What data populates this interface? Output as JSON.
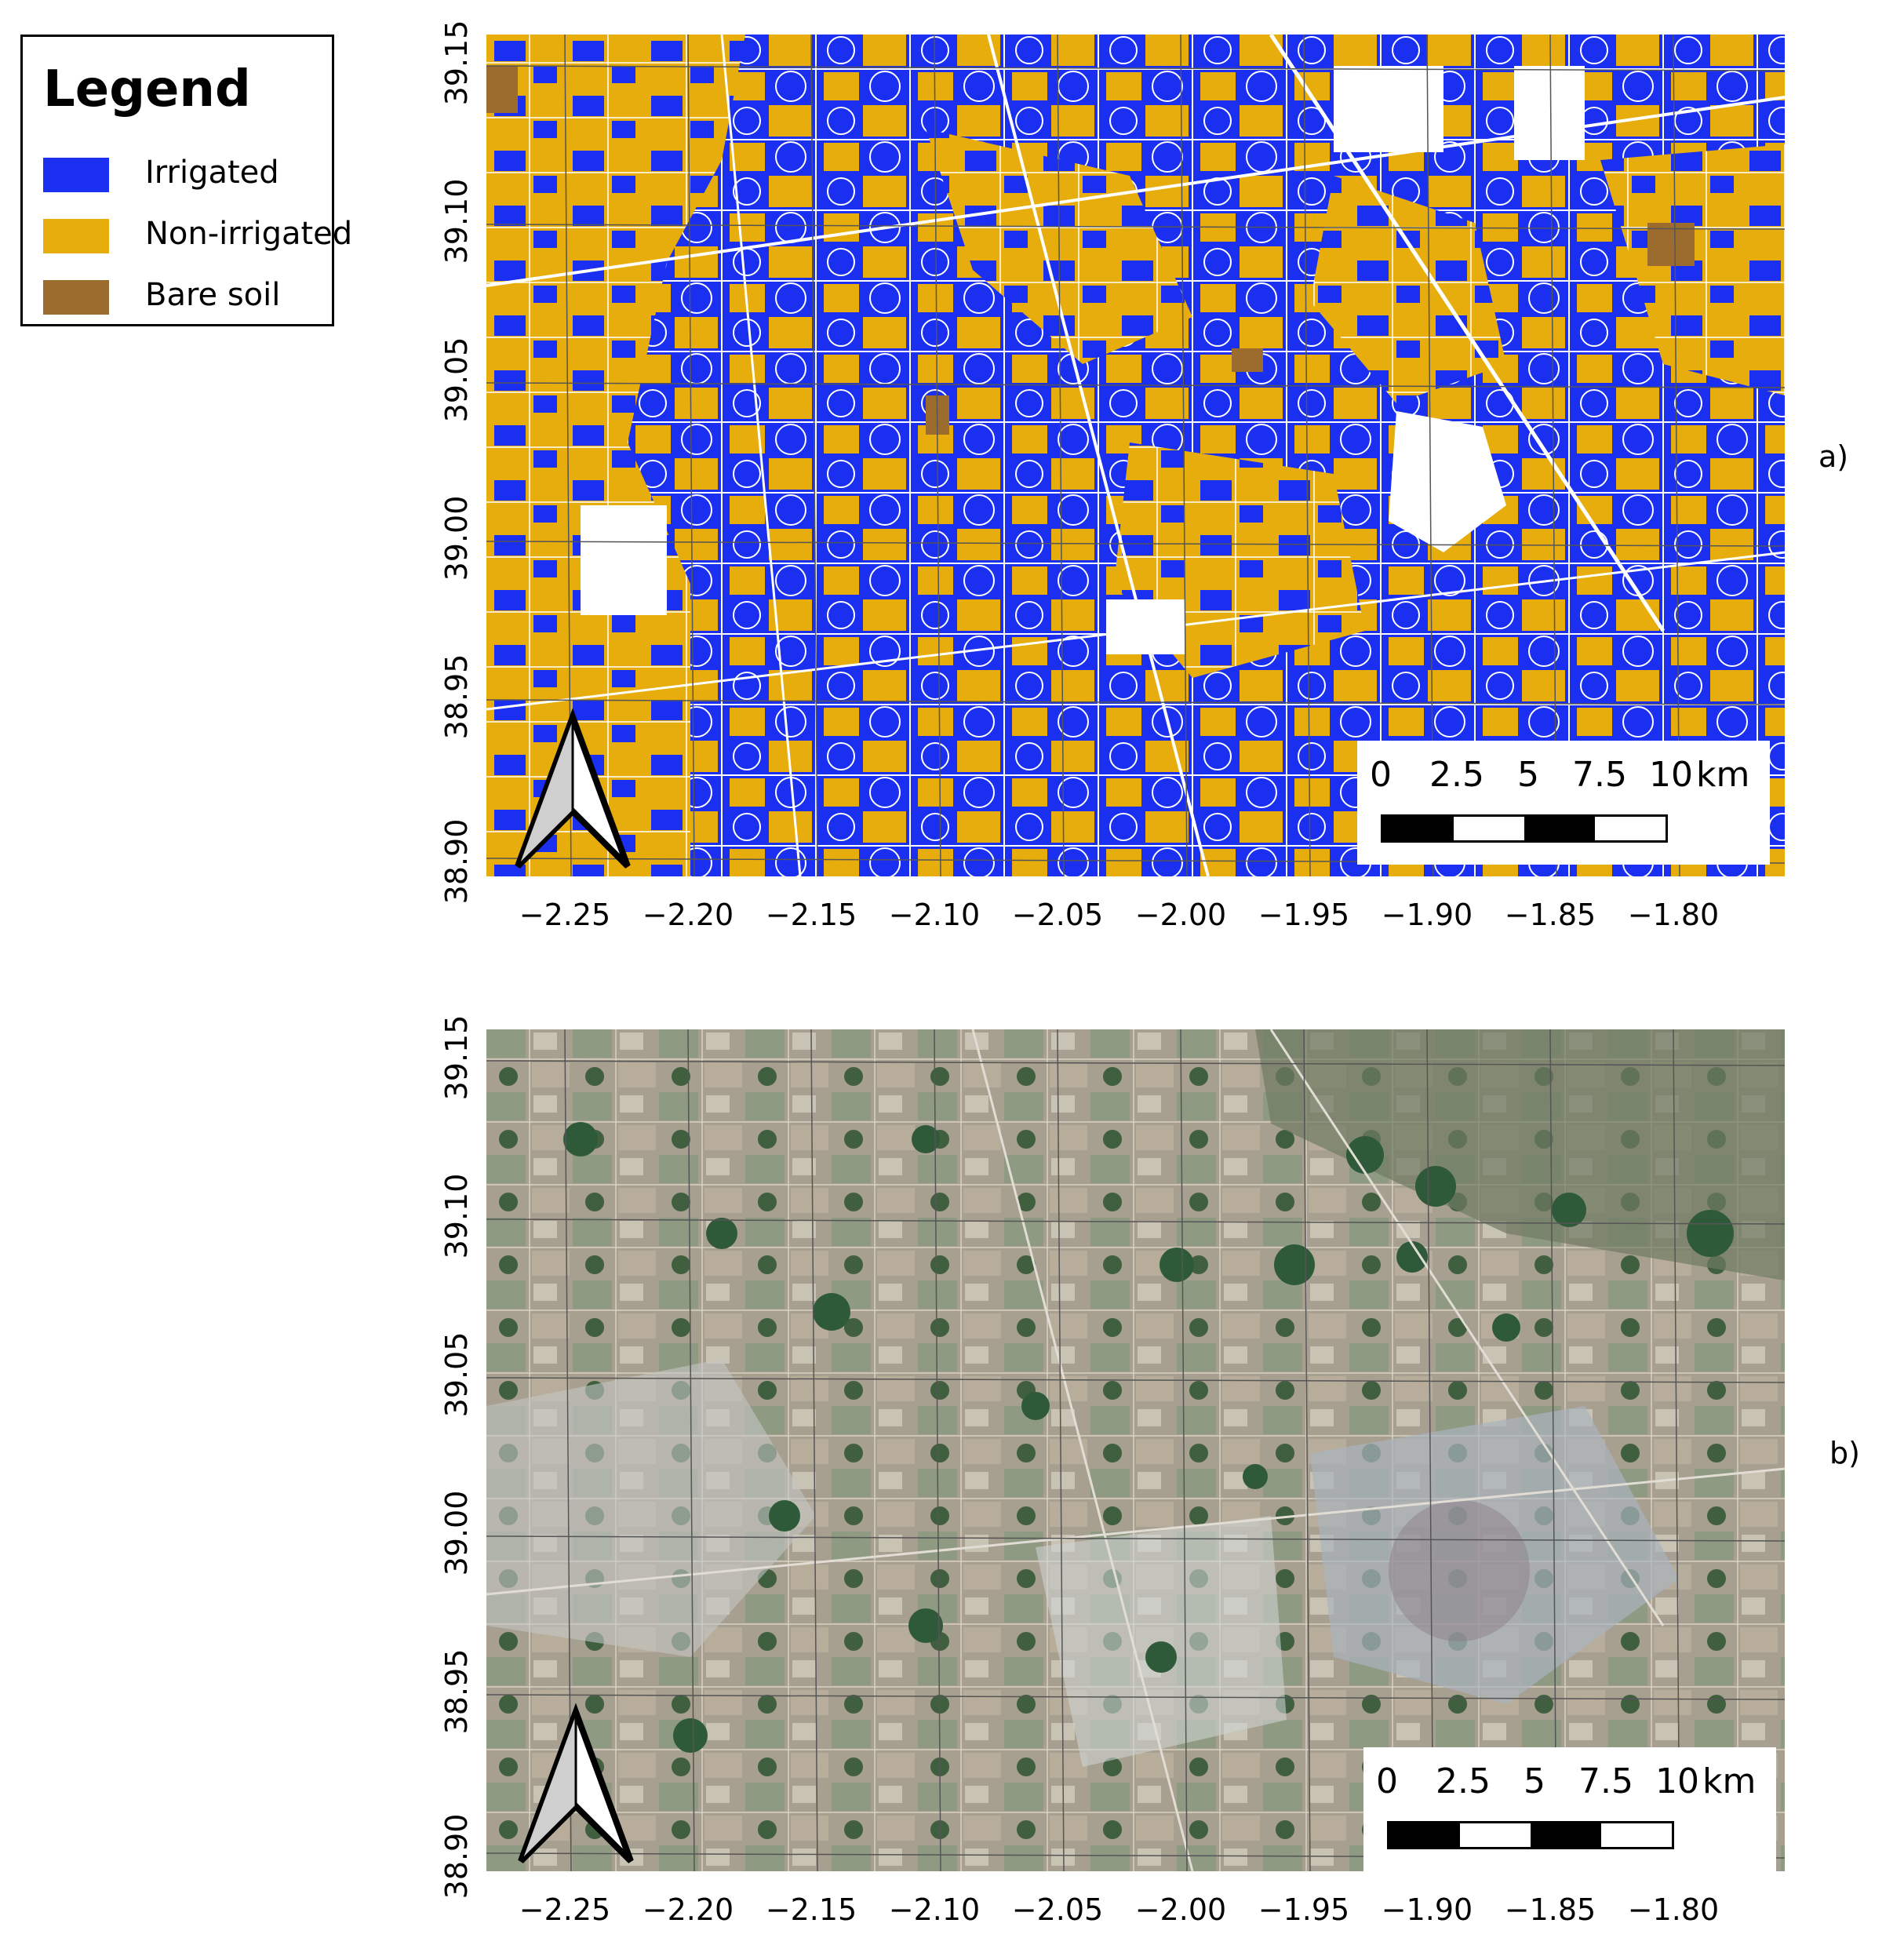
{
  "legend": {
    "title": "Legend",
    "items": [
      {
        "label": "Irrigated",
        "color": "#1a2ff0"
      },
      {
        "label": "Non-irrigated",
        "color": "#e6ad0c"
      },
      {
        "label": "Bare soil",
        "color": "#9c6b2e"
      }
    ]
  },
  "panels": [
    {
      "label": "a)",
      "kind": "classification-map"
    },
    {
      "label": "b)",
      "kind": "satellite-image"
    }
  ],
  "axes": {
    "y_ticks": [
      "38.90",
      "38.95",
      "39.00",
      "39.05",
      "39.10",
      "39.15"
    ],
    "x_ticks": [
      "−2.25",
      "−2.20",
      "−2.15",
      "−2.10",
      "−2.05",
      "−2.00",
      "−1.95",
      "−1.90",
      "−1.85",
      "−1.80"
    ]
  },
  "scale_bar": {
    "labels": [
      "0",
      "2.5",
      "5",
      "7.5",
      "10"
    ],
    "unit": "km"
  },
  "north_arrow": {
    "icon": "north-arrow-icon"
  }
}
